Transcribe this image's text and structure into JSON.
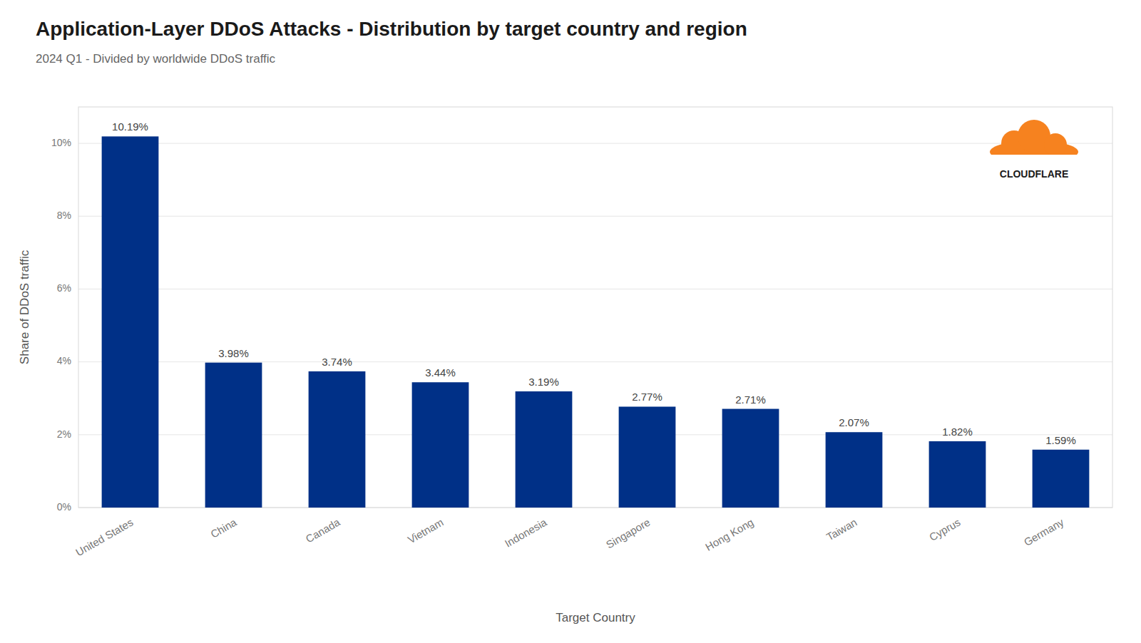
{
  "chart_data": {
    "type": "bar",
    "title": "Application-Layer DDoS Attacks - Distribution by target country and region",
    "subtitle": "2024 Q1 - Divided by worldwide DDoS traffic",
    "xlabel": "Target Country",
    "ylabel": "Share of DDoS traffic",
    "categories": [
      "United States",
      "China",
      "Canada",
      "Vietnam",
      "Indonesia",
      "Singapore",
      "Hong Kong",
      "Taiwan",
      "Cyprus",
      "Germany"
    ],
    "values": [
      10.19,
      3.98,
      3.74,
      3.44,
      3.19,
      2.77,
      2.71,
      2.07,
      1.82,
      1.59
    ],
    "value_labels": [
      "10.19%",
      "3.98%",
      "3.74%",
      "3.44%",
      "3.19%",
      "2.77%",
      "2.71%",
      "2.07%",
      "1.82%",
      "1.59%"
    ],
    "color": "#003087",
    "ylim": [
      0,
      11
    ],
    "yticks": [
      {
        "value": 0,
        "label": "0%"
      },
      {
        "value": 2,
        "label": "2%"
      },
      {
        "value": 4,
        "label": "4%"
      },
      {
        "value": 6,
        "label": "6%"
      },
      {
        "value": 8,
        "label": "8%"
      },
      {
        "value": 10,
        "label": "10%"
      }
    ],
    "grid": true,
    "data_labels": true,
    "annotations": [
      {
        "text": "CLOUDFLARE",
        "color": "#F6821F"
      }
    ]
  }
}
